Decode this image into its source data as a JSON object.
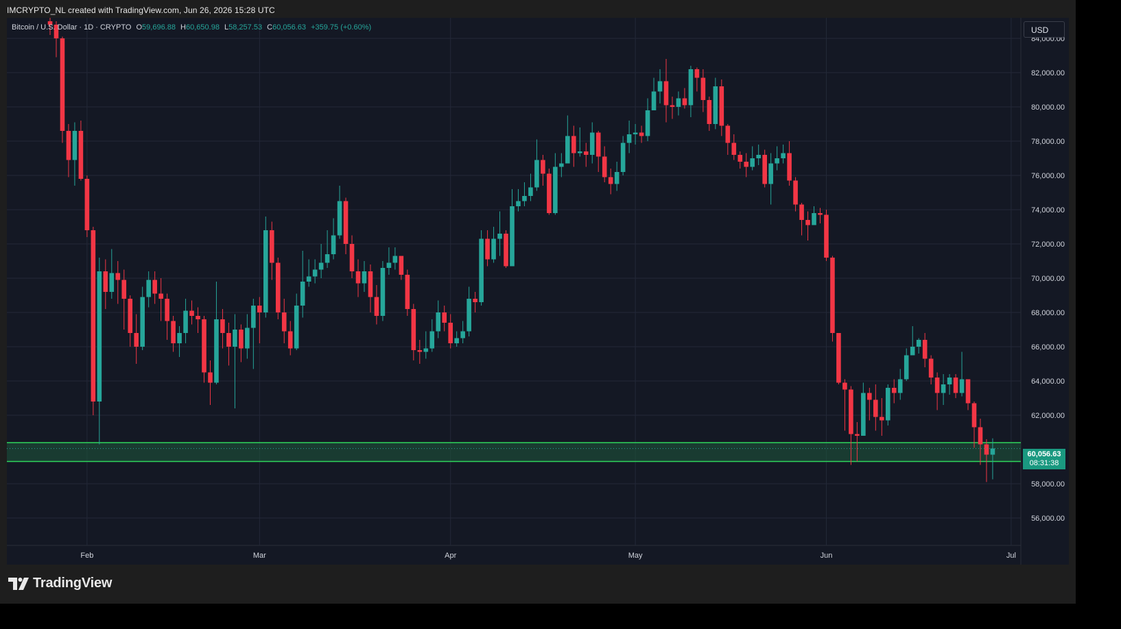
{
  "header": {
    "title": "IMCRYPTO_NL created with TradingView.com, Jun 26, 2026 15:28 UTC"
  },
  "legend": {
    "symbol": "Bitcoin / U.S. Dollar · 1D · CRYPTO",
    "o_label": "O",
    "o": "59,696.88",
    "h_label": "H",
    "h": "60,650.98",
    "l_label": "L",
    "l": "58,257.53",
    "c_label": "C",
    "c": "60,056.63",
    "change": "+359.75 (+0.60%)"
  },
  "currency": "USD",
  "brand": {
    "name": "TradingView"
  },
  "price_tag": {
    "price": "60,056.63",
    "countdown": "08:31:38"
  },
  "colors": {
    "up": "#26a69a",
    "down": "#f23645",
    "zone": "#2fd65c",
    "zone_fill": "#1d5a3c",
    "background": "#141824",
    "grid": "#232838"
  },
  "chart_data": {
    "type": "candlestick",
    "ylim": [
      54400,
      85200
    ],
    "y_ticks": [
      "84,000.00",
      "82,000.00",
      "80,000.00",
      "78,000.00",
      "76,000.00",
      "74,000.00",
      "72,000.00",
      "70,000.00",
      "68,000.00",
      "66,000.00",
      "64,000.00",
      "62,000.00",
      "58,000.00",
      "56,000.00"
    ],
    "y_tick_values": [
      84000,
      82000,
      80000,
      78000,
      76000,
      74000,
      72000,
      70000,
      68000,
      66000,
      64000,
      62000,
      58000,
      56000
    ],
    "x_ticks": [
      "Feb",
      "Mar",
      "Apr",
      "May",
      "Jun",
      "Jul"
    ],
    "x_tick_positions": [
      6,
      34,
      65,
      95,
      126,
      156
    ],
    "support_zone": {
      "top": 60400,
      "bottom": 59300
    },
    "last_price": 60056.63,
    "candles": [
      [
        85000,
        84800,
        85200,
        84200
      ],
      [
        84800,
        84000,
        85000,
        82900
      ],
      [
        84000,
        78600,
        84100,
        77900
      ],
      [
        78600,
        76900,
        79000,
        75900
      ],
      [
        76900,
        78600,
        79100,
        75400
      ],
      [
        78600,
        75800,
        79200,
        75700
      ],
      [
        75800,
        72800,
        76000,
        72400
      ],
      [
        72800,
        62800,
        73000,
        62000
      ],
      [
        62800,
        70400,
        71200,
        60300
      ],
      [
        70400,
        69200,
        71100,
        68200
      ],
      [
        69200,
        70300,
        71700,
        68800
      ],
      [
        70300,
        69900,
        71000,
        68500
      ],
      [
        69900,
        68800,
        70500,
        67000
      ],
      [
        68800,
        66800,
        69000,
        66000
      ],
      [
        66800,
        66000,
        67900,
        65000
      ],
      [
        66000,
        68900,
        69500,
        65800
      ],
      [
        68900,
        69900,
        70400,
        68300
      ],
      [
        69900,
        69100,
        70400,
        68500
      ],
      [
        69100,
        68800,
        70000,
        67500
      ],
      [
        68800,
        67500,
        69100,
        66400
      ],
      [
        67500,
        66200,
        67800,
        65700
      ],
      [
        66200,
        66800,
        67200,
        65400
      ],
      [
        66800,
        68100,
        68800,
        66200
      ],
      [
        68100,
        67800,
        68700,
        67300
      ],
      [
        67800,
        67600,
        68300,
        66800
      ],
      [
        67600,
        64500,
        67800,
        63900
      ],
      [
        64500,
        63900,
        65200,
        62600
      ],
      [
        63900,
        67600,
        69800,
        63800
      ],
      [
        67600,
        66800,
        68200,
        65900
      ],
      [
        66800,
        66000,
        67400,
        64900
      ],
      [
        66000,
        67000,
        67900,
        62400
      ],
      [
        67000,
        65900,
        67300,
        65100
      ],
      [
        65900,
        67100,
        67900,
        65300
      ],
      [
        67100,
        68400,
        68800,
        64700
      ],
      [
        68400,
        68000,
        68900,
        66200
      ],
      [
        68000,
        72800,
        73600,
        67700
      ],
      [
        72800,
        70900,
        73300,
        69900
      ],
      [
        70900,
        68000,
        71200,
        67600
      ],
      [
        68000,
        66900,
        68800,
        66200
      ],
      [
        66900,
        65900,
        67500,
        65500
      ],
      [
        65900,
        68400,
        69100,
        65800
      ],
      [
        68400,
        69800,
        71600,
        67700
      ],
      [
        69800,
        70100,
        71100,
        69500
      ],
      [
        70100,
        70500,
        71100,
        69700
      ],
      [
        70500,
        70900,
        72000,
        70000
      ],
      [
        70900,
        71400,
        72800,
        70600
      ],
      [
        71400,
        72500,
        73500,
        71100
      ],
      [
        72500,
        74500,
        75400,
        72300
      ],
      [
        74500,
        72000,
        74700,
        71400
      ],
      [
        72000,
        70400,
        72500,
        70000
      ],
      [
        70400,
        69700,
        71100,
        68900
      ],
      [
        69700,
        70400,
        71000,
        69200
      ],
      [
        70400,
        68900,
        70800,
        68000
      ],
      [
        68900,
        67800,
        69600,
        67300
      ],
      [
        67800,
        70600,
        71000,
        67500
      ],
      [
        70600,
        70900,
        71800,
        70200
      ],
      [
        70900,
        71300,
        71800,
        70500
      ],
      [
        71300,
        70200,
        71300,
        69900
      ],
      [
        70200,
        68200,
        70500,
        67800
      ],
      [
        68200,
        65800,
        68500,
        65200
      ],
      [
        65800,
        65700,
        66400,
        65000
      ],
      [
        65700,
        65900,
        66900,
        65300
      ],
      [
        65900,
        66900,
        67600,
        65700
      ],
      [
        66900,
        68000,
        68700,
        66500
      ],
      [
        68000,
        67400,
        68400,
        66900
      ],
      [
        67400,
        66200,
        67900,
        65900
      ],
      [
        66200,
        66500,
        66900,
        66000
      ],
      [
        66500,
        66900,
        67500,
        66200
      ],
      [
        66900,
        68800,
        69500,
        66600
      ],
      [
        68800,
        68600,
        69200,
        68000
      ],
      [
        68600,
        72300,
        72800,
        68400
      ],
      [
        72300,
        71100,
        72800,
        70700
      ],
      [
        71100,
        72300,
        73000,
        70900
      ],
      [
        72300,
        72600,
        73900,
        71300
      ],
      [
        72600,
        70700,
        72800,
        70600
      ],
      [
        70700,
        74200,
        75200,
        70800
      ],
      [
        74200,
        74500,
        75200,
        73900
      ],
      [
        74500,
        74800,
        75600,
        74200
      ],
      [
        74800,
        75300,
        76100,
        74500
      ],
      [
        75300,
        76900,
        78100,
        75100
      ],
      [
        76900,
        76100,
        77200,
        75400
      ],
      [
        76100,
        73800,
        76400,
        73700
      ],
      [
        73800,
        76500,
        77300,
        73700
      ],
      [
        76500,
        76700,
        77300,
        75900
      ],
      [
        76700,
        78300,
        79500,
        76800
      ],
      [
        78300,
        77300,
        78900,
        76500
      ],
      [
        77300,
        77400,
        78800,
        77100
      ],
      [
        77400,
        77200,
        77900,
        76500
      ],
      [
        77200,
        78500,
        79100,
        76700
      ],
      [
        78500,
        77100,
        78600,
        76200
      ],
      [
        77100,
        75900,
        77700,
        75600
      ],
      [
        75900,
        75500,
        76400,
        74900
      ],
      [
        75500,
        76200,
        76800,
        75100
      ],
      [
        76200,
        77900,
        78300,
        76000
      ],
      [
        77900,
        78400,
        79200,
        77300
      ],
      [
        78400,
        78500,
        79000,
        77800
      ],
      [
        78500,
        78300,
        78900,
        77900
      ],
      [
        78300,
        79800,
        80500,
        78000
      ],
      [
        79800,
        80900,
        81700,
        79800
      ],
      [
        80900,
        81500,
        82200,
        80200
      ],
      [
        81500,
        80100,
        82800,
        79100
      ],
      [
        80100,
        80000,
        80600,
        79300
      ],
      [
        80000,
        80500,
        80900,
        79500
      ],
      [
        80500,
        80100,
        81100,
        79900
      ],
      [
        80100,
        82200,
        82400,
        79400
      ],
      [
        82200,
        81700,
        82300,
        80900
      ],
      [
        81700,
        80400,
        82200,
        79700
      ],
      [
        80400,
        79000,
        80600,
        78600
      ],
      [
        79000,
        81200,
        81700,
        78700
      ],
      [
        81200,
        78900,
        81600,
        78300
      ],
      [
        78900,
        77900,
        79000,
        77200
      ],
      [
        77900,
        77200,
        78400,
        76900
      ],
      [
        77200,
        76800,
        77400,
        76400
      ],
      [
        76800,
        76500,
        77300,
        75900
      ],
      [
        76500,
        77000,
        77700,
        76300
      ],
      [
        77000,
        77200,
        77800,
        76600
      ],
      [
        77200,
        75500,
        77500,
        75300
      ],
      [
        75500,
        76700,
        77300,
        74300
      ],
      [
        76700,
        77000,
        77700,
        76300
      ],
      [
        77000,
        77300,
        77800,
        76700
      ],
      [
        77300,
        75700,
        78000,
        75400
      ],
      [
        75700,
        74300,
        75900,
        73900
      ],
      [
        74300,
        73400,
        74400,
        72500
      ],
      [
        73400,
        73100,
        73900,
        72200
      ],
      [
        73100,
        73800,
        74200,
        73100
      ],
      [
        73800,
        73700,
        74100,
        73200
      ],
      [
        73700,
        71200,
        74000,
        71000
      ],
      [
        71200,
        66800,
        71300,
        66300
      ],
      [
        66800,
        63900,
        66800,
        63800
      ],
      [
        63900,
        63500,
        64100,
        61100
      ],
      [
        63500,
        60900,
        63700,
        59100
      ],
      [
        60900,
        60800,
        61600,
        59300
      ],
      [
        60800,
        63300,
        63900,
        61000
      ],
      [
        63300,
        62900,
        63600,
        61700
      ],
      [
        62900,
        61900,
        63800,
        61100
      ],
      [
        61900,
        61700,
        63000,
        60800
      ],
      [
        61700,
        63600,
        63800,
        61400
      ],
      [
        63600,
        63300,
        64100,
        62700
      ],
      [
        63300,
        64100,
        64700,
        62900
      ],
      [
        64100,
        65500,
        65900,
        64000
      ],
      [
        65500,
        66000,
        67200,
        65500
      ],
      [
        66000,
        66400,
        66500,
        65600
      ],
      [
        66400,
        65300,
        66800,
        64800
      ],
      [
        65300,
        64200,
        65500,
        63800
      ],
      [
        64200,
        63300,
        64500,
        62300
      ],
      [
        63300,
        63800,
        64400,
        62600
      ],
      [
        63800,
        64200,
        64400,
        63200
      ],
      [
        64200,
        63300,
        64400,
        63000
      ],
      [
        63300,
        64100,
        65700,
        63100
      ],
      [
        64100,
        62700,
        64100,
        62300
      ],
      [
        62700,
        61300,
        62800,
        60100
      ],
      [
        61300,
        60300,
        61800,
        59100
      ],
      [
        60300,
        59700,
        60600,
        58100
      ],
      [
        59697,
        60057,
        60651,
        58258
      ]
    ]
  }
}
